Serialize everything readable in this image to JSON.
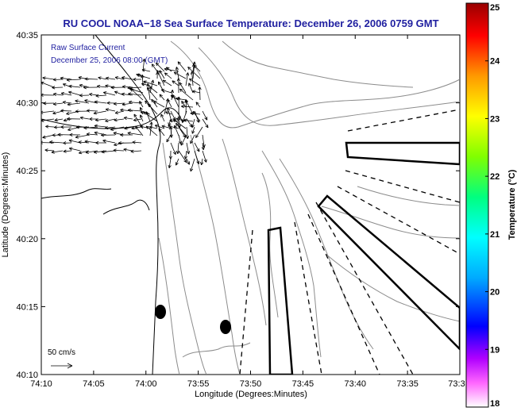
{
  "chart_data": {
    "type": "map",
    "title": "RU COOL  NOAA−18  Sea Surface Temperature:  December 26, 2006 0759 GMT",
    "xlabel": "Longitude (Degrees:Minutes)",
    "ylabel": "Latitude (Degrees:Minutes)",
    "x_ticks": [
      "74:10",
      "74:05",
      "74:00",
      "73:55",
      "73:50",
      "73:45",
      "73:40",
      "73:35",
      "73:3"
    ],
    "y_ticks": [
      "40:35",
      "40:30",
      "40:25",
      "40:20",
      "40:15",
      "40:10"
    ],
    "colorbar": {
      "label": "Temperature (°C)",
      "ticks": [
        "25",
        "24",
        "23",
        "22",
        "21",
        "20",
        "19",
        "18"
      ],
      "range": [
        18,
        25
      ]
    },
    "annotations": {
      "current_label": "Raw Surface Current",
      "current_time": "December 25, 2006 08:00 (GMT)",
      "scale_label": "50 cm/s"
    },
    "colors": {
      "title": "#1f1fa0",
      "annotation": "#1f1fa0",
      "axes": "#000000",
      "coast": "#000000",
      "bathymetry": "#8c8c8c"
    }
  }
}
